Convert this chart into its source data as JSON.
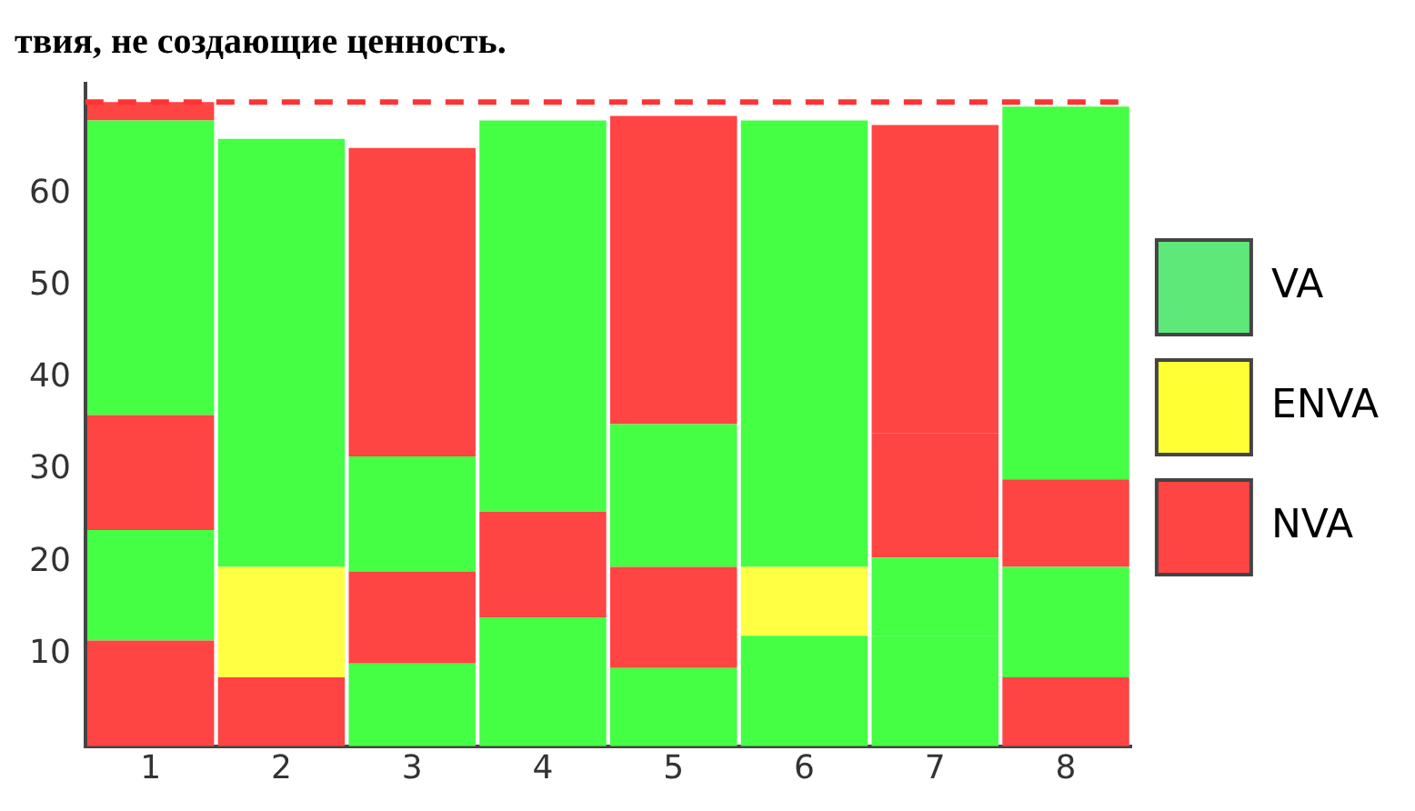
{
  "chart_data": {
    "type": "bar",
    "title": "твия, не создающие ценность.",
    "stacked": true,
    "categories": [
      "1",
      "2",
      "3",
      "4",
      "5",
      "6",
      "7",
      "8"
    ],
    "series": [
      {
        "colors": [
          "#ff4444",
          "#ff4444",
          "#44ff44",
          "#44ff44",
          "#44ff44",
          "#44ff44",
          "#44ff44",
          "#ff4444"
        ],
        "values": [
          11.5,
          7.5,
          9,
          14,
          8.5,
          12,
          12,
          7.5
        ]
      },
      {
        "colors": [
          "#44ff44",
          "#ffff44",
          "#ff4444",
          "#ff4444",
          "#ff4444",
          "#ffff44",
          "#44ff44",
          "#44ff44"
        ],
        "values": [
          12,
          12,
          10,
          11.5,
          11,
          7.5,
          8.5,
          12
        ]
      },
      {
        "colors": [
          "#ff4444",
          "#44ff44",
          "#44ff44",
          "#44ff44",
          "#44ff44",
          "#44ff44",
          "#ff4444",
          "#ff4444"
        ],
        "values": [
          12.5,
          46.5,
          12.5,
          42.5,
          15.5,
          48.5,
          13.5,
          9.5
        ]
      },
      {
        "colors": [
          "#44ff44",
          null,
          "#ff4444",
          null,
          "#ff4444",
          null,
          "#ff4444",
          "#44ff44"
        ],
        "values": [
          32,
          null,
          33.5,
          null,
          33.5,
          null,
          33.5,
          40.5
        ]
      },
      {
        "colors": [
          "#ff4444",
          null,
          null,
          null,
          null,
          null,
          null,
          null
        ],
        "values": [
          2,
          null,
          null,
          null,
          null,
          null,
          null,
          null
        ]
      },
      {
        "name": "VA",
        "color": "#5ee87a",
        "values": [
          null,
          null,
          null,
          null,
          null,
          null,
          null,
          null
        ]
      },
      {
        "name": "ENVA",
        "color": "#ffff33",
        "values": [
          null,
          null,
          null,
          null,
          null,
          null,
          null,
          null
        ]
      },
      {
        "name": "NVA",
        "color": "#ff4444",
        "values": [
          null,
          null,
          null,
          null,
          null,
          null,
          null,
          null
        ]
      }
    ],
    "ylim": [
      0,
      72
    ],
    "yticks": [
      10,
      20,
      30,
      40,
      50,
      60
    ],
    "grid": false,
    "legend": "right",
    "ref_lines": [
      {
        "axis": "y",
        "value": 70,
        "color": "#ff3333",
        "line_style": "dashed"
      }
    ]
  }
}
